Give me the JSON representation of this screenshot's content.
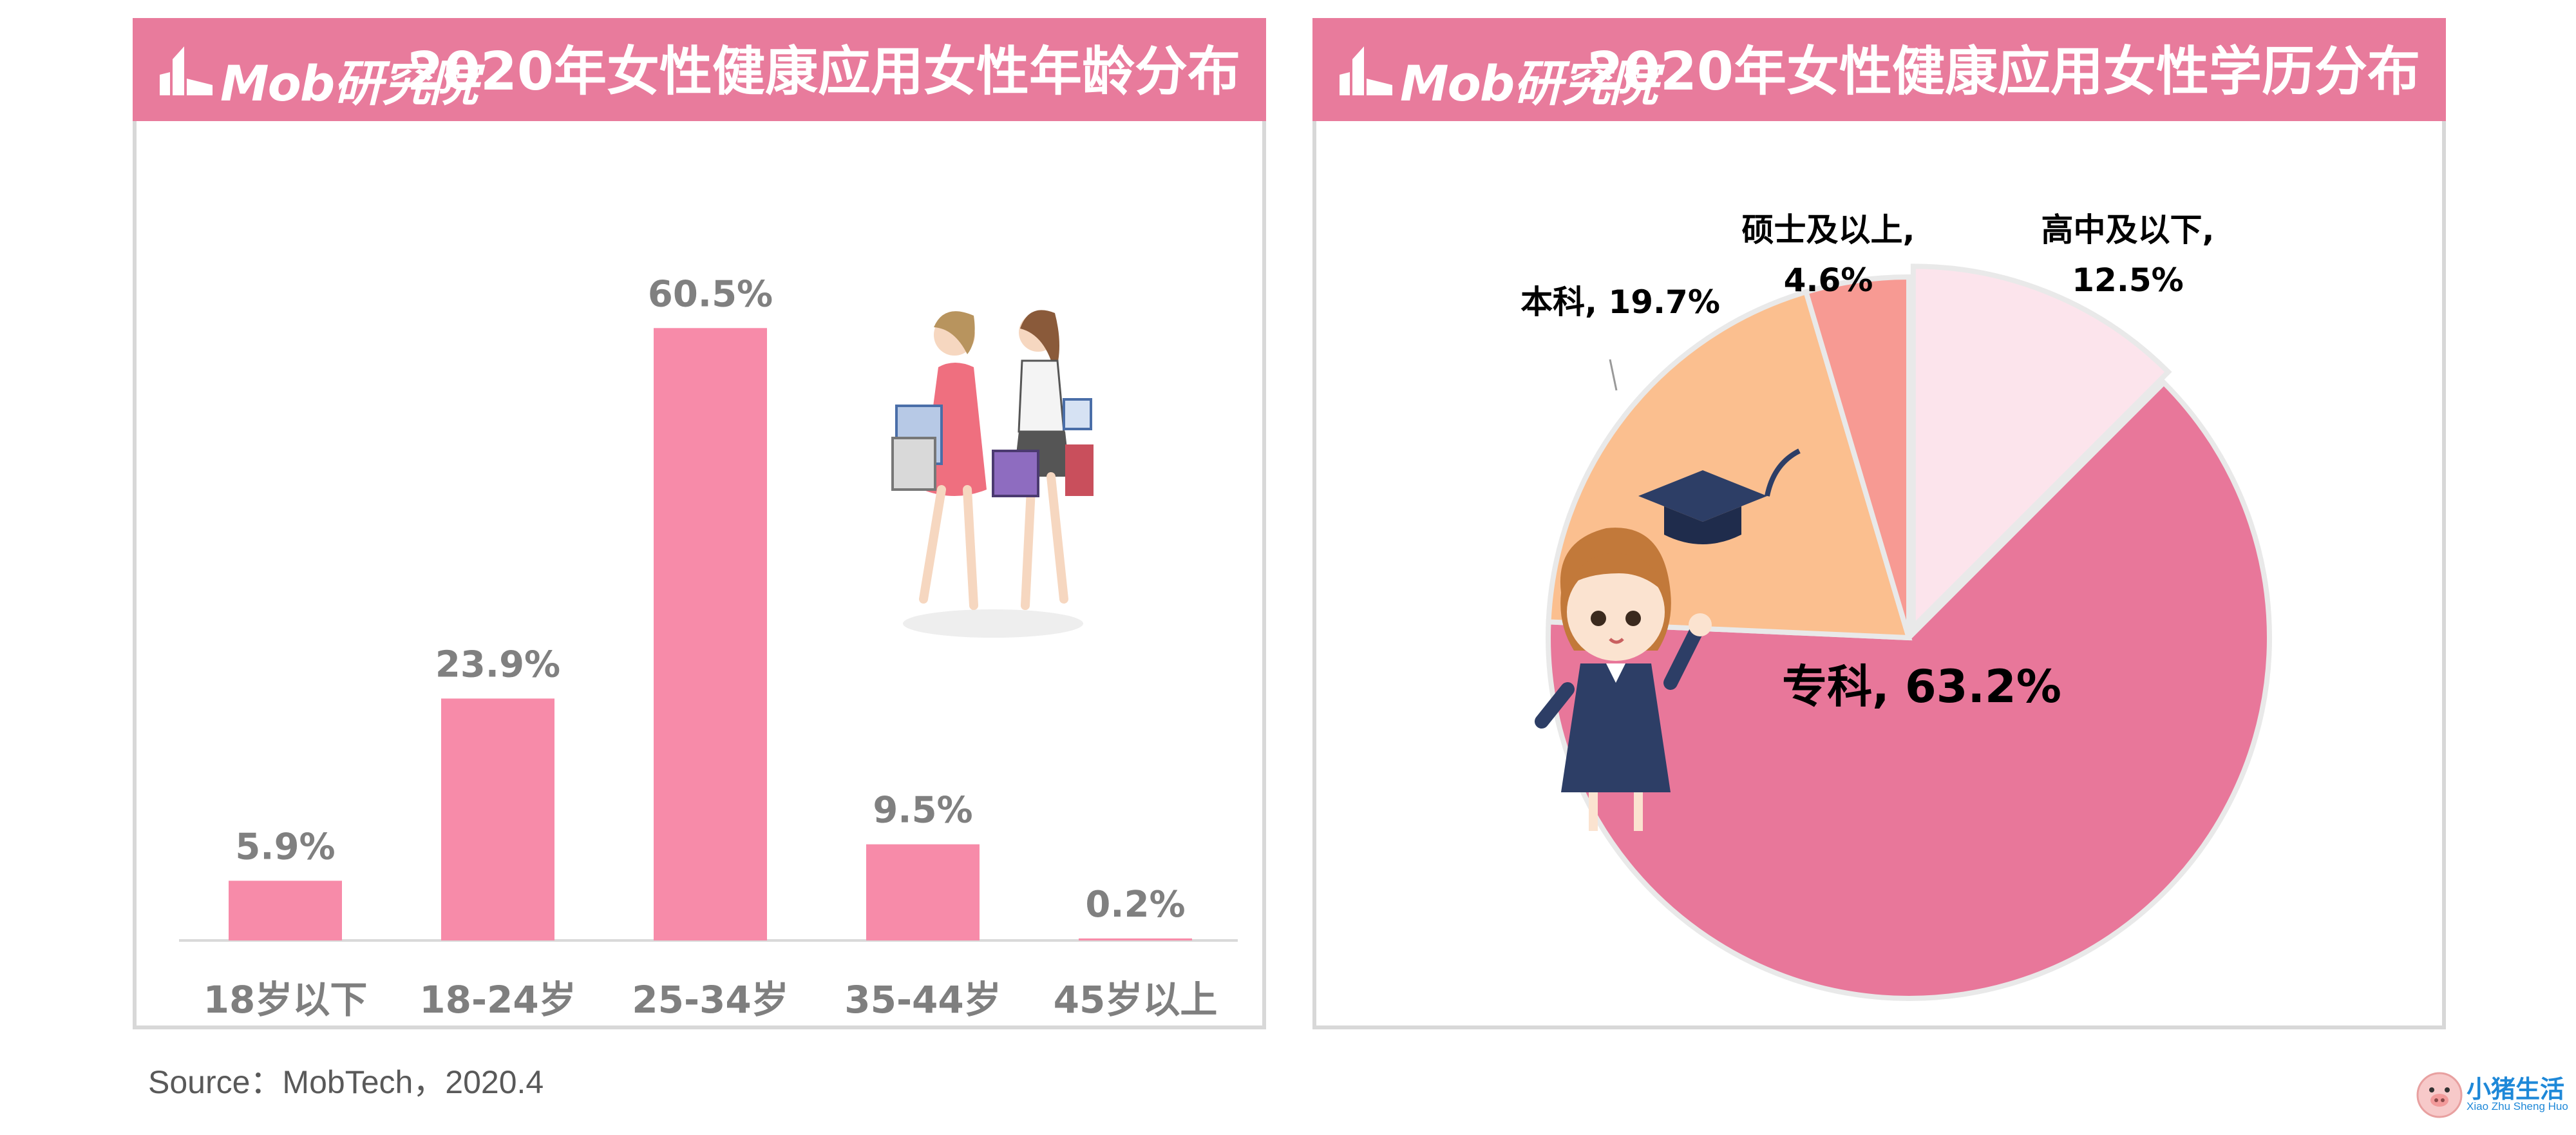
{
  "header_left": {
    "logo_text": "Mob研究院",
    "title": "2020年女性健康应用女性年龄分布"
  },
  "header_right": {
    "logo_text": "Mob研究院",
    "title": "2020年女性健康应用女性学历分布"
  },
  "source": "Source：MobTech，2020.4",
  "brand": {
    "title": "小猪生活",
    "subtitle": "Xiao Zhu Sheng Huo"
  },
  "colors": {
    "header": "#e87b9c",
    "bar": "#f78ba9",
    "pie": [
      "#fce4ec",
      "#e8779a",
      "#fbbf8f",
      "#f79a93"
    ]
  },
  "icons": [
    "shopping-women-illustration",
    "graduate-girl-illustration",
    "graduation-cap-icon",
    "pig-mascot-icon"
  ],
  "chart_data": [
    {
      "type": "bar",
      "categories": [
        "18岁以下",
        "18-24岁",
        "25-34岁",
        "35-44岁",
        "45岁以上"
      ],
      "values": [
        5.9,
        23.9,
        60.5,
        9.5,
        0.2
      ],
      "value_labels": [
        "5.9%",
        "23.9%",
        "60.5%",
        "9.5%",
        "0.2%"
      ],
      "title": "2020年女性健康应用女性年龄分布",
      "ylim": [
        0,
        70
      ],
      "grid": false
    },
    {
      "type": "pie",
      "labels": [
        "高中及以下",
        "专科",
        "本科",
        "硕士及以上"
      ],
      "values": [
        12.5,
        63.2,
        19.7,
        4.6
      ],
      "slice_labels": [
        "高中及以下,",
        "专科, 63.2%",
        "本科, 19.7%",
        "硕士及以上,"
      ],
      "slice_values": [
        "12.5%",
        "",
        "",
        "4.6%"
      ],
      "title": "2020年女性健康应用女性学历分布"
    }
  ]
}
